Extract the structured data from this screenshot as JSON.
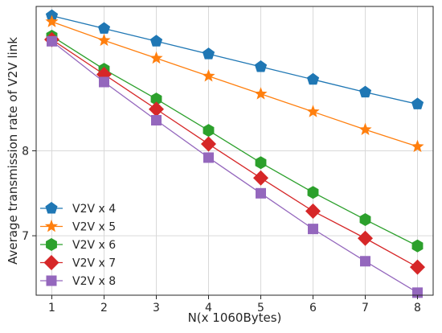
{
  "chart_data": {
    "type": "line",
    "title": "",
    "xlabel": "N(x 1060Bytes)",
    "ylabel": "Average transmission rate of V2V link",
    "x": [
      1,
      2,
      3,
      4,
      5,
      6,
      7,
      8
    ],
    "xticks": [
      "1",
      "2",
      "3",
      "4",
      "5",
      "6",
      "7",
      "8"
    ],
    "yticks": [
      {
        "value": 7,
        "label": "7"
      },
      {
        "value": 8,
        "label": "8"
      }
    ],
    "xlim": [
      0.7,
      8.3
    ],
    "ylim": [
      6.3,
      9.7
    ],
    "grid": true,
    "legend_position": "lower-left",
    "series": [
      {
        "name": "V2V x 4",
        "color": "#1f77b4",
        "marker": "pentagon",
        "values": [
          9.59,
          9.44,
          9.29,
          9.14,
          8.99,
          8.84,
          8.69,
          8.55
        ]
      },
      {
        "name": "V2V x 5",
        "color": "#ff7f0e",
        "marker": "star",
        "values": [
          9.52,
          9.3,
          9.09,
          8.88,
          8.67,
          8.46,
          8.25,
          8.05
        ]
      },
      {
        "name": "V2V x 6",
        "color": "#2ca02c",
        "marker": "hexagon",
        "values": [
          9.35,
          8.96,
          8.61,
          8.24,
          7.86,
          7.51,
          7.19,
          6.88
        ]
      },
      {
        "name": "V2V x 7",
        "color": "#d62728",
        "marker": "diamond",
        "values": [
          9.31,
          8.9,
          8.49,
          8.08,
          7.68,
          7.29,
          6.97,
          6.63
        ]
      },
      {
        "name": "V2V x 8",
        "color": "#9467bd",
        "marker": "square",
        "values": [
          9.29,
          8.81,
          8.36,
          7.92,
          7.5,
          7.08,
          6.7,
          6.33
        ]
      }
    ]
  }
}
